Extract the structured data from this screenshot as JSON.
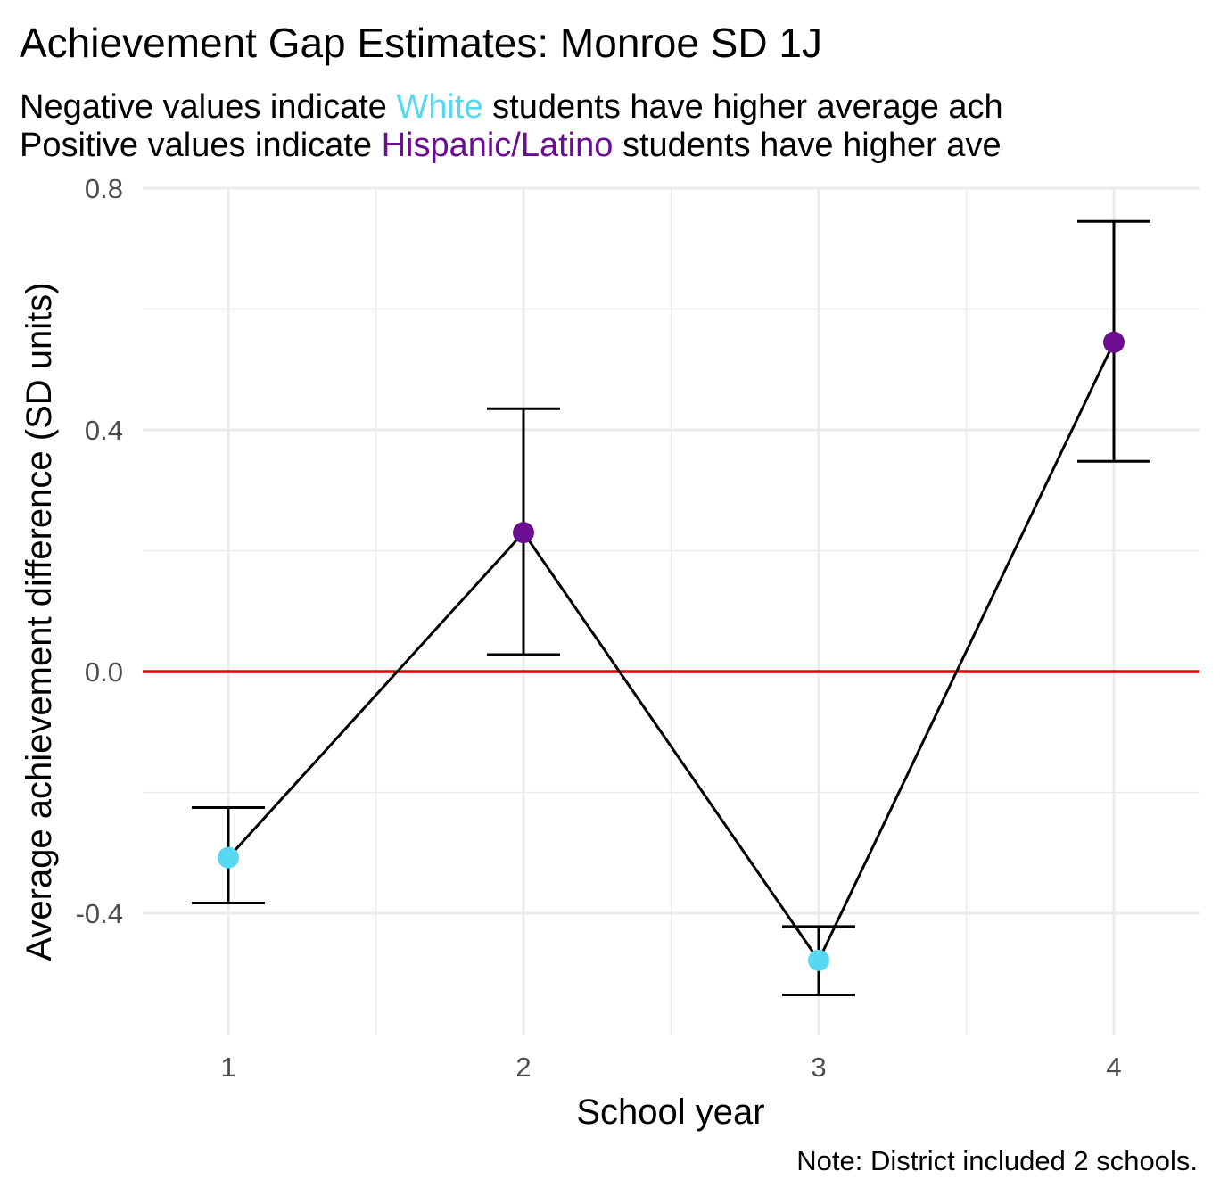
{
  "chart_data": {
    "type": "line",
    "title": "Achievement Gap Estimates: Monroe SD 1J",
    "subtitle": {
      "line1": {
        "before": "Negative values indicate ",
        "highlight": "White",
        "after": " students have higher average ach"
      },
      "line2": {
        "before": "Positive values indicate ",
        "highlight": "Hispanic/Latino",
        "after": " students have higher ave"
      }
    },
    "xlabel": "School year",
    "ylabel": "Average achievement difference (SD units)",
    "caption": "Note: District included 2 schools.",
    "x": [
      1,
      2,
      3,
      4
    ],
    "x_ticks": [
      "1",
      "2",
      "3",
      "4"
    ],
    "xlim": [
      0.71,
      4.29
    ],
    "y_ticks": [
      "-0.4",
      "0.0",
      "0.4",
      "0.8"
    ],
    "y_tick_values": [
      -0.4,
      0.0,
      0.4,
      0.8
    ],
    "ylim": [
      -0.6,
      0.8
    ],
    "series": [
      {
        "estimate": [
          -0.308,
          0.23,
          -0.478,
          0.545
        ],
        "lower": [
          -0.383,
          0.028,
          -0.535,
          0.348
        ],
        "upper": [
          -0.225,
          0.435,
          -0.422,
          0.745
        ],
        "group": [
          "White",
          "Hispanic/Latino",
          "White",
          "Hispanic/Latino"
        ]
      }
    ],
    "reference_line": {
      "y": 0,
      "color": "#e8000b"
    },
    "colors": {
      "White": "#56d8f0",
      "Hispanic/Latino": "#6a0d91",
      "line": "#000000",
      "grid": "#ebebeb"
    },
    "grid": true,
    "legend": "none"
  }
}
